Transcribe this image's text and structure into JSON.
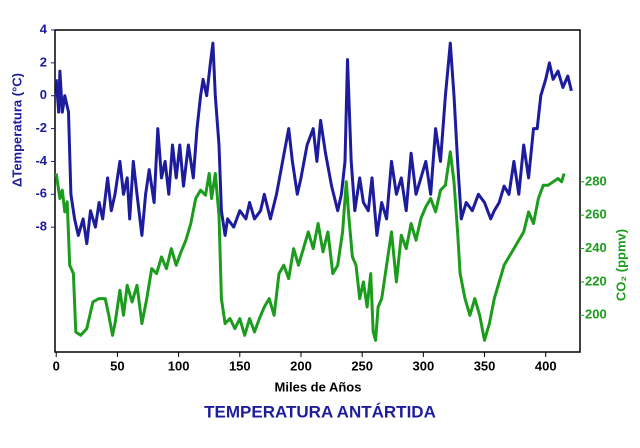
{
  "chart_data": {
    "type": "line",
    "title": "TEMPERATURA ANTÁRTIDA",
    "x_label": "Miles de Años",
    "y_label": "ΔTemperatura (°C)",
    "y2_label": "CO₂ (ppmv)",
    "xlim": [
      -1,
      428
    ],
    "xticks": [
      0,
      50,
      100,
      150,
      200,
      250,
      300,
      350,
      400
    ],
    "ylim": [
      -15.6,
      4
    ],
    "yticks": [
      -8,
      -6,
      -4,
      -2,
      0,
      2,
      4
    ],
    "y2lim": [
      178,
      371
    ],
    "y2ticks": [
      200,
      220,
      240,
      260,
      280
    ],
    "series": [
      {
        "color": "#1c1c9c",
        "x": [
          0,
          2,
          3,
          5,
          7,
          10,
          12,
          15,
          18,
          22,
          25,
          28,
          32,
          35,
          38,
          42,
          45,
          48,
          52,
          55,
          58,
          60,
          63,
          66,
          70,
          73,
          76,
          80,
          83,
          86,
          89,
          92,
          95,
          98,
          101,
          104,
          108,
          112,
          115,
          118,
          120,
          123,
          126,
          128,
          130,
          133,
          135,
          138,
          140,
          145,
          150,
          155,
          158,
          162,
          167,
          170,
          175,
          180,
          185,
          190,
          193,
          197,
          200,
          205,
          210,
          213,
          216,
          220,
          225,
          230,
          233,
          236,
          238,
          241,
          244,
          248,
          251,
          255,
          258,
          262,
          266,
          270,
          274,
          278,
          282,
          286,
          290,
          294,
          298,
          302,
          306,
          310,
          314,
          318,
          322,
          325,
          328,
          331,
          335,
          340,
          345,
          350,
          355,
          358,
          362,
          366,
          370,
          374,
          378,
          382,
          386,
          390,
          393,
          396,
          400,
          403,
          406,
          410,
          414,
          418,
          421
        ],
        "values": [
          1,
          -1,
          1.5,
          -1,
          0,
          -1,
          -6,
          -7.5,
          -8.5,
          -7.5,
          -9,
          -7,
          -8,
          -6.5,
          -7.5,
          -5,
          -7,
          -6,
          -4,
          -6,
          -5,
          -7.5,
          -4,
          -6,
          -8.5,
          -6,
          -4.5,
          -6.5,
          -2,
          -5,
          -4,
          -6,
          -3,
          -5,
          -3,
          -5.5,
          -3,
          -5,
          -2,
          0,
          1,
          0,
          2,
          3.2,
          0,
          -3,
          -7,
          -8.5,
          -7.5,
          -8,
          -7,
          -7.5,
          -6.5,
          -7.5,
          -7,
          -6,
          -7.5,
          -6,
          -4,
          -2,
          -4,
          -6,
          -5,
          -3,
          -2,
          -4,
          -1.5,
          -3.5,
          -5.5,
          -7,
          -6,
          -4,
          2.2,
          -4,
          -7,
          -5,
          -6.5,
          -7,
          -5,
          -8.5,
          -6.5,
          -7.5,
          -4,
          -6,
          -5,
          -7,
          -3.5,
          -6,
          -5,
          -4,
          -6,
          -2,
          -4,
          0,
          3.2,
          0,
          -4,
          -7.5,
          -6.5,
          -7,
          -6,
          -6.5,
          -7.5,
          -7,
          -6.5,
          -5.5,
          -6,
          -4,
          -6,
          -3,
          -5,
          -2,
          -2,
          0,
          1,
          2,
          1,
          1.5,
          0.5,
          1.2,
          0.3
        ]
      },
      {
        "color": "#1c9c1c",
        "axis": "y2",
        "x": [
          0,
          3,
          5,
          7,
          9,
          11,
          14,
          16,
          20,
          25,
          30,
          35,
          40,
          43,
          46,
          48,
          52,
          55,
          58,
          62,
          66,
          70,
          74,
          78,
          82,
          86,
          90,
          94,
          98,
          102,
          106,
          110,
          114,
          118,
          122,
          125,
          127,
          130,
          133,
          135,
          138,
          142,
          146,
          150,
          154,
          158,
          162,
          166,
          170,
          174,
          178,
          182,
          186,
          190,
          194,
          198,
          202,
          206,
          210,
          214,
          218,
          222,
          226,
          230,
          234,
          237,
          239,
          242,
          245,
          248,
          251,
          254,
          257,
          259,
          261,
          263,
          266,
          270,
          274,
          278,
          282,
          286,
          290,
          294,
          298,
          302,
          306,
          310,
          314,
          318,
          322,
          325,
          328,
          330,
          334,
          338,
          342,
          346,
          350,
          354,
          358,
          362,
          366,
          370,
          374,
          378,
          382,
          386,
          390,
          394,
          398,
          402,
          406,
          410,
          413,
          415
        ],
        "values": [
          285,
          270,
          275,
          262,
          268,
          230,
          225,
          190,
          188,
          192,
          208,
          210,
          210,
          200,
          188,
          195,
          215,
          200,
          218,
          208,
          218,
          195,
          210,
          228,
          225,
          235,
          228,
          240,
          230,
          238,
          245,
          255,
          270,
          275,
          272,
          285,
          270,
          285,
          260,
          210,
          195,
          198,
          192,
          198,
          188,
          198,
          190,
          198,
          205,
          210,
          200,
          225,
          230,
          222,
          240,
          230,
          240,
          250,
          240,
          255,
          238,
          250,
          225,
          230,
          250,
          280,
          260,
          235,
          230,
          210,
          220,
          205,
          225,
          190,
          185,
          205,
          210,
          230,
          250,
          220,
          248,
          240,
          255,
          245,
          258,
          265,
          270,
          262,
          275,
          278,
          298,
          280,
          250,
          225,
          210,
          200,
          210,
          200,
          185,
          195,
          210,
          220,
          230,
          235,
          240,
          245,
          250,
          262,
          255,
          270,
          278,
          278,
          280,
          282,
          280,
          285
        ]
      }
    ]
  }
}
